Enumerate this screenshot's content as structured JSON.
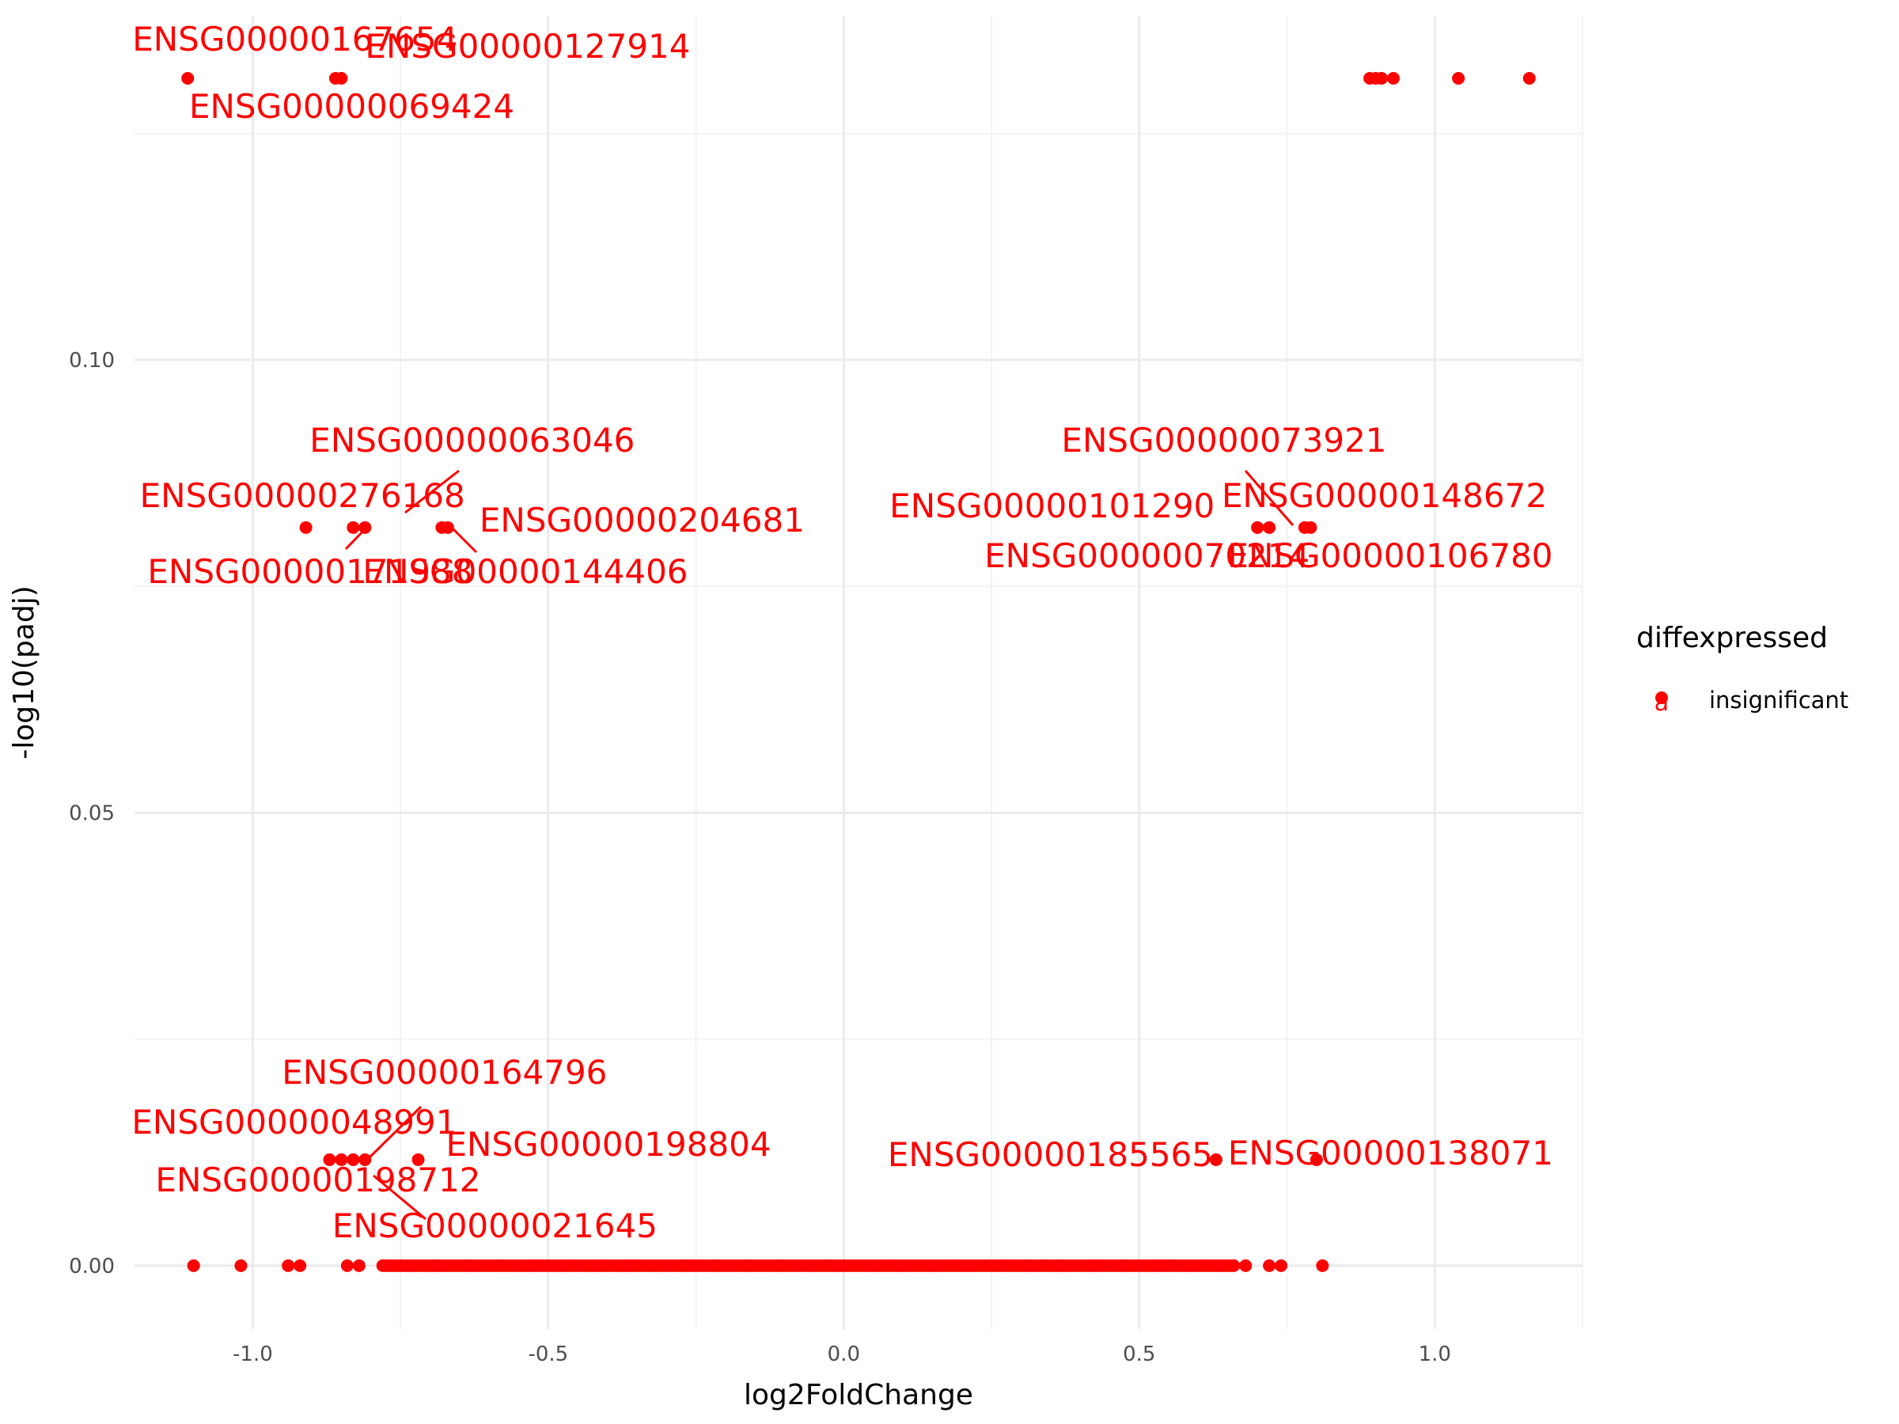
{
  "chart_data": {
    "type": "scatter",
    "title": "",
    "xlabel": "log2FoldChange",
    "ylabel": "-log10(padj)",
    "xlim": [
      -1.2,
      1.25
    ],
    "ylim": [
      -0.007,
      0.138
    ],
    "x_ticks": [
      {
        "value": -1.0,
        "label": "-1.0"
      },
      {
        "value": -0.5,
        "label": "-0.5"
      },
      {
        "value": 0.0,
        "label": "0.0"
      },
      {
        "value": 0.5,
        "label": "0.5"
      },
      {
        "value": 1.0,
        "label": "1.0"
      }
    ],
    "y_ticks": [
      {
        "value": 0.0,
        "label": "0.00"
      },
      {
        "value": 0.05,
        "label": "0.05"
      },
      {
        "value": 0.1,
        "label": "0.10"
      }
    ],
    "grid": true,
    "point_color": "#ff0000",
    "legend": {
      "title": "diffexpressed",
      "position": "right",
      "entries": [
        {
          "label": "insignificant",
          "color": "#ff0000",
          "glyph": "a"
        }
      ]
    },
    "series": [
      {
        "name": "insignificant",
        "color": "#ff0000",
        "points": [
          {
            "x": -1.11,
            "y": 0.1311
          },
          {
            "x": -0.86,
            "y": 0.1311
          },
          {
            "x": -0.85,
            "y": 0.1311
          },
          {
            "x": 0.89,
            "y": 0.1311
          },
          {
            "x": 0.9,
            "y": 0.1311
          },
          {
            "x": 0.91,
            "y": 0.1311
          },
          {
            "x": 0.93,
            "y": 0.1311
          },
          {
            "x": 1.04,
            "y": 0.1311
          },
          {
            "x": 1.16,
            "y": 0.1311
          },
          {
            "x": -0.91,
            "y": 0.0815
          },
          {
            "x": -0.83,
            "y": 0.0815
          },
          {
            "x": -0.81,
            "y": 0.0815
          },
          {
            "x": -0.68,
            "y": 0.0815
          },
          {
            "x": -0.67,
            "y": 0.0815
          },
          {
            "x": 0.7,
            "y": 0.0815
          },
          {
            "x": 0.72,
            "y": 0.0815
          },
          {
            "x": 0.78,
            "y": 0.0815
          },
          {
            "x": 0.79,
            "y": 0.0815
          },
          {
            "x": -0.87,
            "y": 0.0117
          },
          {
            "x": -0.85,
            "y": 0.0117
          },
          {
            "x": -0.83,
            "y": 0.0117
          },
          {
            "x": -0.81,
            "y": 0.0117
          },
          {
            "x": -0.72,
            "y": 0.0117
          },
          {
            "x": 0.63,
            "y": 0.0117
          },
          {
            "x": 0.8,
            "y": 0.0117
          },
          {
            "x": -1.1,
            "y": 0.0
          },
          {
            "x": -1.02,
            "y": 0.0
          },
          {
            "x": -0.94,
            "y": 0.0
          },
          {
            "x": -0.92,
            "y": 0.0
          },
          {
            "x": -0.84,
            "y": 0.0
          },
          {
            "x": -0.82,
            "y": 0.0
          },
          {
            "x": 0.68,
            "y": 0.0
          },
          {
            "x": 0.72,
            "y": 0.0
          },
          {
            "x": 0.74,
            "y": 0.0
          },
          {
            "x": 0.81,
            "y": 0.0
          }
        ],
        "dense_band": {
          "y": 0.0,
          "x_from": -0.78,
          "x_to": 0.66
        }
      }
    ],
    "annotations": [
      {
        "text": "ENSG00000167654",
        "x": -1.11,
        "y": 0.1311
      },
      {
        "text": "ENSG00000127914",
        "x": -0.85,
        "y": 0.1311
      },
      {
        "text": "ENSG00000069424",
        "x": -0.86,
        "y": 0.1311
      },
      {
        "text": "ENSG00000063046",
        "x": -0.81,
        "y": 0.0815
      },
      {
        "text": "ENSG00000276168",
        "x": -0.91,
        "y": 0.0815
      },
      {
        "text": "ENSG00000204681",
        "x": -0.67,
        "y": 0.0815
      },
      {
        "text": "ENSG00000171988",
        "x": -0.83,
        "y": 0.0815
      },
      {
        "text": "ENSG00000144406",
        "x": -0.68,
        "y": 0.0815
      },
      {
        "text": "ENSG00000073921",
        "x": 0.79,
        "y": 0.0815
      },
      {
        "text": "ENSG00000101290",
        "x": 0.7,
        "y": 0.0815
      },
      {
        "text": "ENSG00000148672",
        "x": 0.78,
        "y": 0.0815
      },
      {
        "text": "ENSG00000070214",
        "x": 0.72,
        "y": 0.0815
      },
      {
        "text": "ENSG00000106780",
        "x": 0.79,
        "y": 0.0815
      },
      {
        "text": "ENSG00000164796",
        "x": -0.81,
        "y": 0.0117
      },
      {
        "text": "ENSG00000048991",
        "x": -0.83,
        "y": 0.0117
      },
      {
        "text": "ENSG00000198804",
        "x": -0.72,
        "y": 0.0117
      },
      {
        "text": "ENSG00000198712",
        "x": -0.85,
        "y": 0.0117
      },
      {
        "text": "ENSG00000021645",
        "x": -0.82,
        "y": 0.0117
      },
      {
        "text": "ENSG00000185565",
        "x": 0.63,
        "y": 0.0117
      },
      {
        "text": "ENSG00000138071",
        "x": 0.8,
        "y": 0.0117
      }
    ]
  }
}
